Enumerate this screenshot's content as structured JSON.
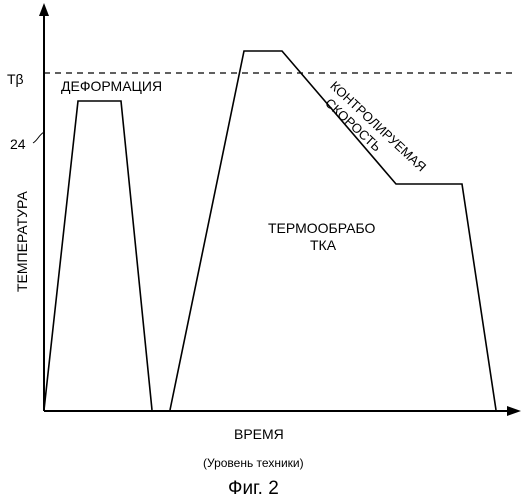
{
  "diagram": {
    "labels": {
      "t_beta": "Tβ",
      "ref_24": "24",
      "deformation": "ДЕФОРМАЦИЯ",
      "controlled_line1": "КОНТРОЛИРУЕМАЯ",
      "controlled_line2": "СКОРОСТЬ",
      "heat_treat_line1": "ТЕРМООБРАБО",
      "heat_treat_line2": "ТКА",
      "y_axis": "ТЕМПЕРАТУРА",
      "x_axis": "ВРЕМЯ",
      "note": "(Уровень техники)",
      "figure": "Фиг. 2"
    }
  }
}
